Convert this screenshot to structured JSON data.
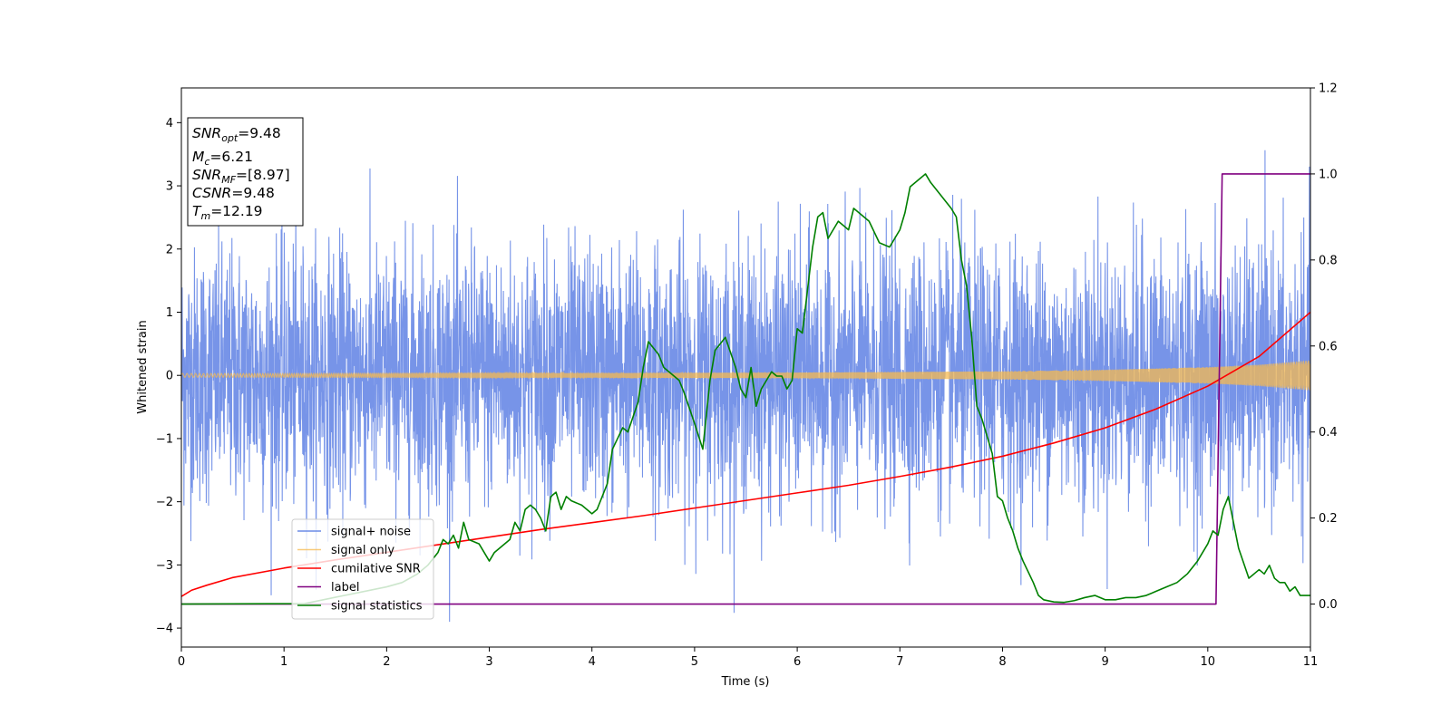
{
  "chart_data": {
    "type": "line",
    "xlabel": "Time (s)",
    "ylabel": "Whitened strain",
    "xlim": [
      0,
      11
    ],
    "ylim": [
      -4.3,
      4.55
    ],
    "y2lim": [
      -0.1,
      1.2
    ],
    "x_ticks": [
      "0",
      "1",
      "2",
      "3",
      "4",
      "5",
      "6",
      "7",
      "8",
      "9",
      "10",
      "11"
    ],
    "y_ticks": [
      "−4",
      "−3",
      "−2",
      "−1",
      "0",
      "1",
      "2",
      "3",
      "4"
    ],
    "y2_ticks": [
      "0.0",
      "0.2",
      "0.4",
      "0.6",
      "0.8",
      "1.0",
      "1.2"
    ],
    "legend": {
      "position": "lower-left",
      "entries": [
        "signal+ noise",
        "signal only",
        "cumilative SNR",
        "label",
        "signal statistics"
      ]
    },
    "info_box": {
      "position": "top-left",
      "lines": [
        {
          "var": "SNR",
          "sub": "opt",
          "value": "=9.48"
        },
        {
          "var": "M",
          "sub": "c",
          "value": "=6.21"
        },
        {
          "var": "SNR",
          "sub": "MF",
          "value": "=[8.97]"
        },
        {
          "var": "CSNR",
          "sub": "",
          "value": "=9.48"
        },
        {
          "var": "T",
          "sub": "m",
          "value": "=12.19"
        }
      ]
    },
    "series": [
      {
        "name": "signal+ noise",
        "color": "#6b8be6",
        "axis": "left",
        "description_of_values": "whitened noisy strain, roughly zero-mean, amplitude mostly within ±2.5",
        "sigma": 1.0
      },
      {
        "name": "signal only",
        "color": "#f5b950",
        "axis": "left",
        "envelope": {
          "x": [
            0,
            4,
            6,
            8,
            9,
            10,
            10.5,
            11
          ],
          "y": [
            0.03,
            0.035,
            0.045,
            0.065,
            0.09,
            0.13,
            0.17,
            0.24
          ]
        }
      },
      {
        "name": "cumilative SNR",
        "color": "#ff0000",
        "axis": "left",
        "x": [
          0,
          0.1,
          0.25,
          0.5,
          1,
          1.5,
          2,
          2.5,
          3,
          3.5,
          4,
          4.5,
          5,
          5.5,
          6,
          6.5,
          7,
          7.5,
          8,
          8.5,
          9,
          9.5,
          10,
          10.5,
          11
        ],
        "y": [
          -3.5,
          -3.4,
          -3.32,
          -3.2,
          -3.05,
          -2.92,
          -2.8,
          -2.68,
          -2.56,
          -2.44,
          -2.33,
          -2.22,
          -2.1,
          -1.98,
          -1.86,
          -1.74,
          -1.6,
          -1.45,
          -1.28,
          -1.07,
          -0.83,
          -0.53,
          -0.17,
          0.3,
          1.0
        ]
      },
      {
        "name": "label",
        "color": "#800080",
        "axis": "right",
        "x": [
          0,
          10.08,
          10.14,
          11
        ],
        "y": [
          0,
          0,
          1,
          1
        ]
      },
      {
        "name": "signal statistics",
        "color": "#008000",
        "axis": "right",
        "x": [
          0,
          1.2,
          2.0,
          2.15,
          2.3,
          2.4,
          2.5,
          2.55,
          2.6,
          2.65,
          2.7,
          2.75,
          2.8,
          2.9,
          3.0,
          3.05,
          3.1,
          3.2,
          3.25,
          3.3,
          3.35,
          3.4,
          3.45,
          3.5,
          3.55,
          3.6,
          3.65,
          3.7,
          3.75,
          3.8,
          3.9,
          4.0,
          4.05,
          4.1,
          4.15,
          4.2,
          4.3,
          4.35,
          4.45,
          4.5,
          4.55,
          4.65,
          4.7,
          4.75,
          4.85,
          4.9,
          5.0,
          5.08,
          5.15,
          5.2,
          5.3,
          5.4,
          5.45,
          5.5,
          5.55,
          5.6,
          5.65,
          5.7,
          5.75,
          5.8,
          5.85,
          5.9,
          5.95,
          6.0,
          6.05,
          6.1,
          6.15,
          6.2,
          6.25,
          6.3,
          6.35,
          6.4,
          6.45,
          6.5,
          6.55,
          6.6,
          6.7,
          6.8,
          6.9,
          7.0,
          7.05,
          7.1,
          7.2,
          7.25,
          7.3,
          7.4,
          7.5,
          7.55,
          7.6,
          7.65,
          7.7,
          7.75,
          7.8,
          7.9,
          7.95,
          8.0,
          8.05,
          8.1,
          8.15,
          8.2,
          8.3,
          8.35,
          8.4,
          8.5,
          8.6,
          8.7,
          8.8,
          8.9,
          9.0,
          9.1,
          9.2,
          9.3,
          9.4,
          9.5,
          9.6,
          9.7,
          9.8,
          9.9,
          10.0,
          10.05,
          10.1,
          10.15,
          10.2,
          10.25,
          10.3,
          10.4,
          10.5,
          10.55,
          10.6,
          10.65,
          10.7,
          10.75,
          10.8,
          10.85,
          10.9,
          10.95,
          11.0
        ],
        "y": [
          0,
          0.001,
          0.04,
          0.05,
          0.07,
          0.09,
          0.12,
          0.15,
          0.14,
          0.16,
          0.13,
          0.19,
          0.15,
          0.14,
          0.1,
          0.12,
          0.13,
          0.15,
          0.19,
          0.17,
          0.22,
          0.23,
          0.22,
          0.2,
          0.17,
          0.25,
          0.26,
          0.22,
          0.25,
          0.24,
          0.23,
          0.21,
          0.22,
          0.25,
          0.28,
          0.36,
          0.41,
          0.4,
          0.47,
          0.55,
          0.61,
          0.58,
          0.55,
          0.54,
          0.52,
          0.49,
          0.42,
          0.36,
          0.52,
          0.59,
          0.62,
          0.55,
          0.5,
          0.48,
          0.55,
          0.46,
          0.5,
          0.52,
          0.54,
          0.53,
          0.53,
          0.5,
          0.52,
          0.64,
          0.63,
          0.73,
          0.83,
          0.9,
          0.91,
          0.85,
          0.87,
          0.89,
          0.88,
          0.87,
          0.92,
          0.91,
          0.89,
          0.84,
          0.83,
          0.87,
          0.91,
          0.97,
          0.99,
          1.0,
          0.98,
          0.95,
          0.92,
          0.9,
          0.8,
          0.74,
          0.62,
          0.46,
          0.43,
          0.35,
          0.25,
          0.24,
          0.2,
          0.17,
          0.13,
          0.1,
          0.05,
          0.02,
          0.01,
          0.005,
          0.004,
          0.008,
          0.015,
          0.02,
          0.01,
          0.01,
          0.015,
          0.015,
          0.02,
          0.03,
          0.04,
          0.05,
          0.07,
          0.1,
          0.14,
          0.17,
          0.16,
          0.22,
          0.25,
          0.19,
          0.13,
          0.06,
          0.08,
          0.07,
          0.09,
          0.06,
          0.05,
          0.05,
          0.03,
          0.04,
          0.02,
          0.02,
          0.02
        ]
      }
    ]
  }
}
